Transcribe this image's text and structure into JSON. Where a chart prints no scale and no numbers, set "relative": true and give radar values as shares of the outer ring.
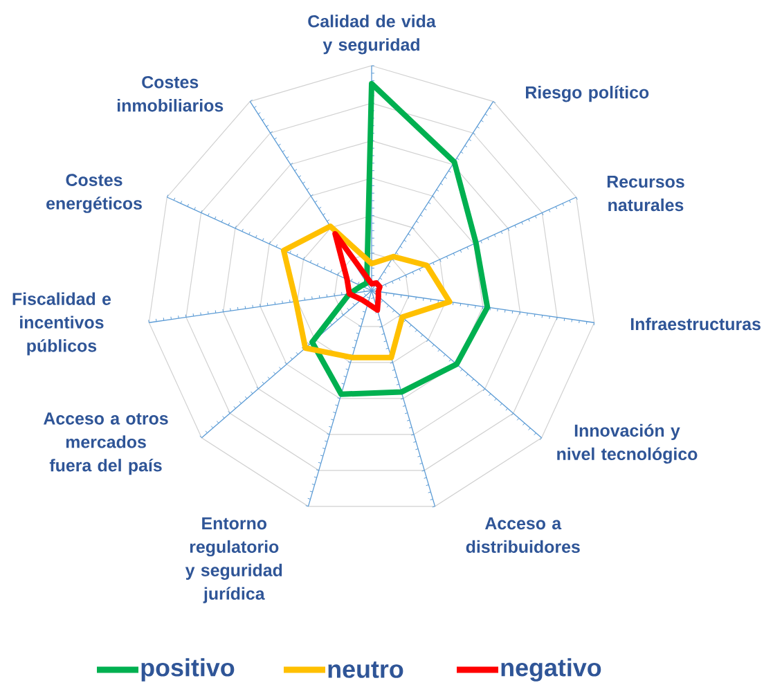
{
  "chart_data": {
    "type": "radar",
    "relative": true,
    "grid": true,
    "legend": "bottom",
    "categories": [
      "Calidad de vida y seguridad",
      "Riesgo político",
      "Recursos naturales",
      "Infraestructuras",
      "Innovación y nivel tecnológico",
      "Acceso a distribuidores",
      "Entorno regulatorio y seguridad jurídica",
      "Acceso a otros mercados fuera del país",
      "Fiscalidad e incentivos públicos",
      "Costes energéticos",
      "Costes inmobiliarios"
    ],
    "series": [
      {
        "name": "positivo",
        "color": "#00b050",
        "values": [
          0.92,
          0.68,
          0.51,
          0.52,
          0.5,
          0.47,
          0.48,
          0.35,
          0.1,
          0.05,
          0.04
        ]
      },
      {
        "name": "neutro",
        "color": "#ffc000",
        "values": [
          0.12,
          0.18,
          0.27,
          0.35,
          0.18,
          0.31,
          0.31,
          0.39,
          0.34,
          0.43,
          0.34
        ]
      },
      {
        "name": "negativo",
        "color": "#ff0000",
        "values": [
          0.03,
          0.04,
          0.04,
          0.03,
          0.04,
          0.09,
          0.06,
          0.06,
          0.1,
          0.12,
          0.3
        ]
      }
    ]
  }
}
